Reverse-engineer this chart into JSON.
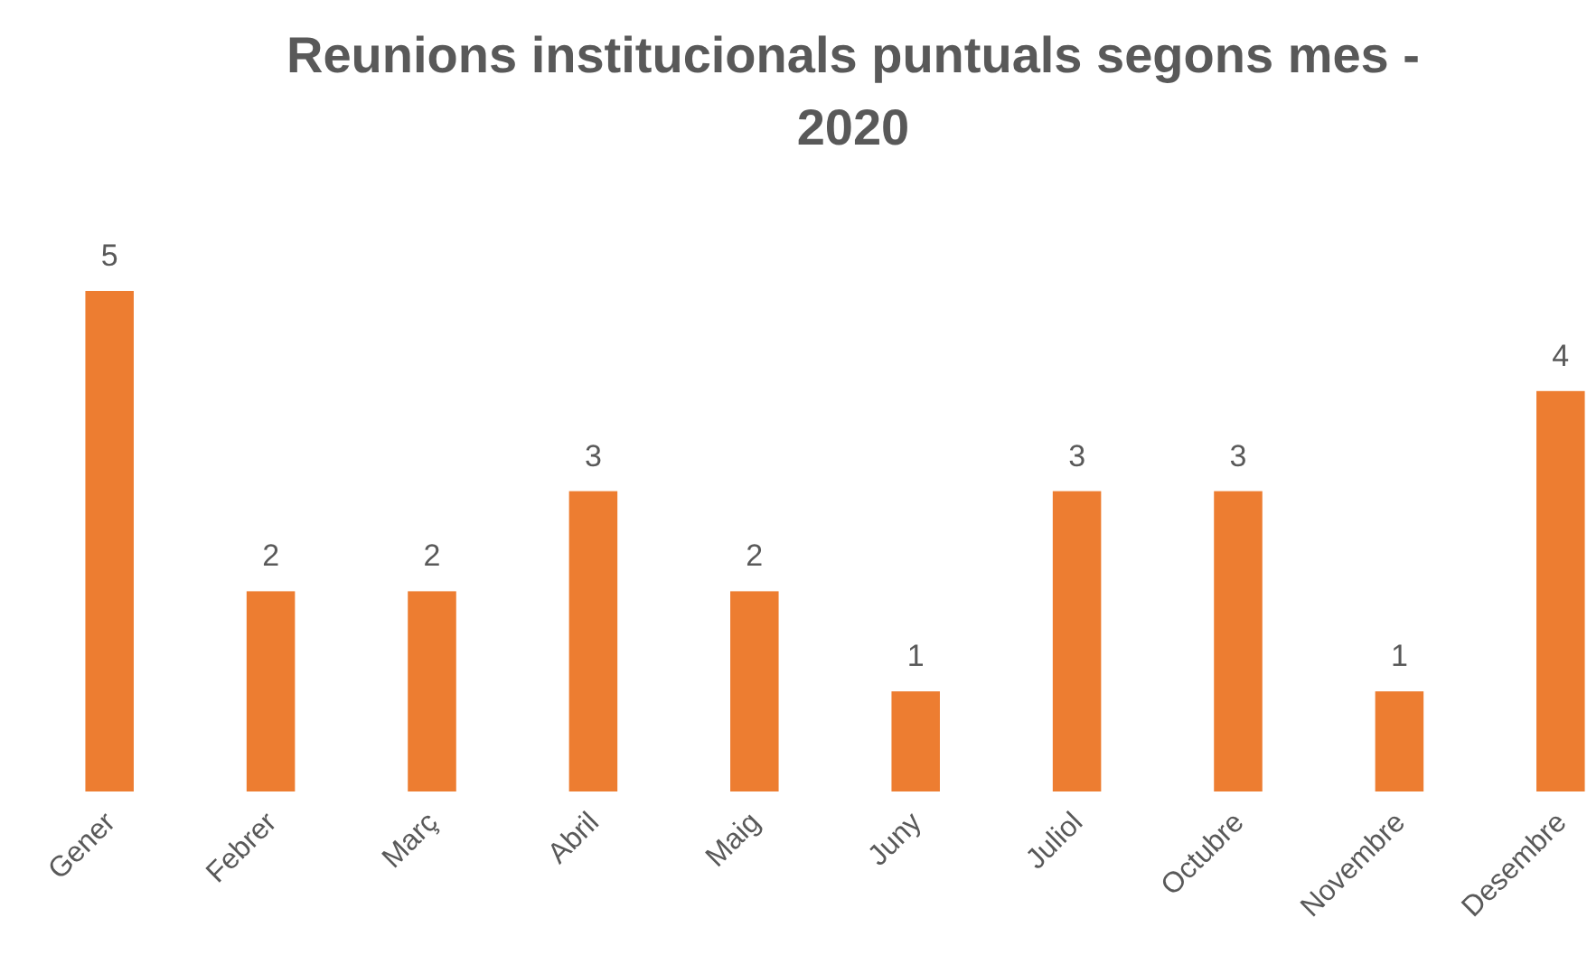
{
  "chart_data": {
    "type": "bar",
    "title": "Reunions institucionals puntuals segons mes - 2020",
    "categories": [
      "Gener",
      "Febrer",
      "Març",
      "Abril",
      "Maig",
      "Juny",
      "Juliol",
      "Octubre",
      "Novembre",
      "Desembre"
    ],
    "values": [
      5,
      2,
      2,
      3,
      2,
      1,
      3,
      3,
      1,
      4
    ],
    "color": "#ed7d31",
    "data_labels": true,
    "grid": false
  }
}
